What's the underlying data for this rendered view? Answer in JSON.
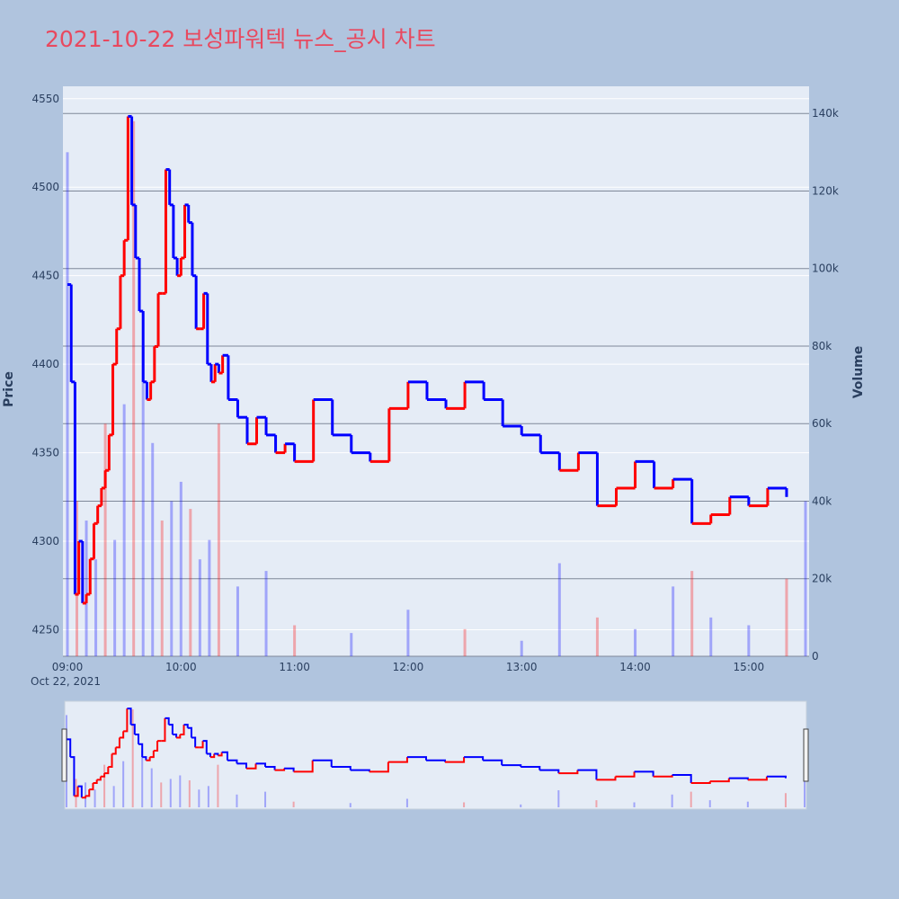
{
  "title": "2021-10-22 보성파워텍 뉴스_공시 차트",
  "colors": {
    "up": "#ff0000",
    "down": "#0000ff",
    "title": "#e8495f",
    "page_bg": "#b0c4de",
    "plot_bg": "#e5ecf6"
  },
  "chart_data": {
    "type": "candlestick",
    "ylabel": "Price",
    "y2label": "Volume",
    "date_label": "Oct 22, 2021",
    "price_ticks": [
      "4250",
      "4300",
      "4350",
      "4400",
      "4450",
      "4500",
      "4550"
    ],
    "volume_ticks": [
      "0",
      "20k",
      "40k",
      "60k",
      "80k",
      "100k",
      "120k",
      "140k"
    ],
    "time_ticks": [
      "09:00",
      "10:00",
      "11:00",
      "12:00",
      "13:00",
      "14:00",
      "15:00"
    ],
    "ylim": [
      4235,
      4557
    ],
    "y2lim": [
      0,
      147000
    ],
    "series": [
      {
        "name": "Price",
        "x": [
          "09:00",
          "09:02",
          "09:04",
          "09:06",
          "09:08",
          "09:10",
          "09:12",
          "09:14",
          "09:16",
          "09:18",
          "09:20",
          "09:22",
          "09:24",
          "09:26",
          "09:28",
          "09:30",
          "09:32",
          "09:34",
          "09:36",
          "09:38",
          "09:40",
          "09:42",
          "09:44",
          "09:46",
          "09:48",
          "09:50",
          "09:52",
          "09:54",
          "09:56",
          "09:58",
          "10:00",
          "10:02",
          "10:04",
          "10:06",
          "10:08",
          "10:10",
          "10:12",
          "10:14",
          "10:16",
          "10:18",
          "10:20",
          "10:22",
          "10:25",
          "10:30",
          "10:35",
          "10:40",
          "10:45",
          "10:50",
          "10:55",
          "11:00",
          "11:10",
          "11:20",
          "11:30",
          "11:40",
          "11:50",
          "12:00",
          "12:10",
          "12:20",
          "12:30",
          "12:40",
          "12:50",
          "13:00",
          "13:10",
          "13:20",
          "13:30",
          "13:40",
          "13:50",
          "14:00",
          "14:10",
          "14:20",
          "14:30",
          "14:40",
          "14:50",
          "15:00",
          "15:10",
          "15:20"
        ],
        "values": [
          4445,
          4390,
          4270,
          4300,
          4265,
          4270,
          4290,
          4310,
          4320,
          4330,
          4340,
          4360,
          4400,
          4420,
          4450,
          4470,
          4540,
          4490,
          4460,
          4430,
          4390,
          4380,
          4390,
          4410,
          4440,
          4440,
          4510,
          4490,
          4460,
          4450,
          4460,
          4490,
          4480,
          4450,
          4420,
          4420,
          4440,
          4400,
          4390,
          4400,
          4395,
          4405,
          4380,
          4370,
          4355,
          4370,
          4360,
          4350,
          4355,
          4345,
          4380,
          4360,
          4350,
          4345,
          4375,
          4390,
          4380,
          4375,
          4390,
          4380,
          4365,
          4360,
          4350,
          4340,
          4350,
          4320,
          4330,
          4345,
          4330,
          4335,
          4310,
          4315,
          4325,
          4320,
          4330,
          4325
        ]
      },
      {
        "name": "Volume",
        "x": [
          "09:00",
          "09:05",
          "09:10",
          "09:15",
          "09:20",
          "09:25",
          "09:30",
          "09:35",
          "09:40",
          "09:45",
          "09:50",
          "09:55",
          "10:00",
          "10:05",
          "10:10",
          "10:15",
          "10:20",
          "10:30",
          "10:45",
          "11:00",
          "11:30",
          "12:00",
          "12:30",
          "13:00",
          "13:20",
          "13:40",
          "14:00",
          "14:20",
          "14:30",
          "14:40",
          "15:00",
          "15:20",
          "15:30"
        ],
        "values": [
          130000,
          40000,
          35000,
          25000,
          60000,
          30000,
          65000,
          138000,
          80000,
          55000,
          35000,
          40000,
          45000,
          38000,
          25000,
          30000,
          60000,
          18000,
          22000,
          8000,
          6000,
          12000,
          7000,
          4000,
          24000,
          10000,
          7000,
          18000,
          22000,
          10000,
          8000,
          20000,
          40000
        ]
      }
    ]
  }
}
